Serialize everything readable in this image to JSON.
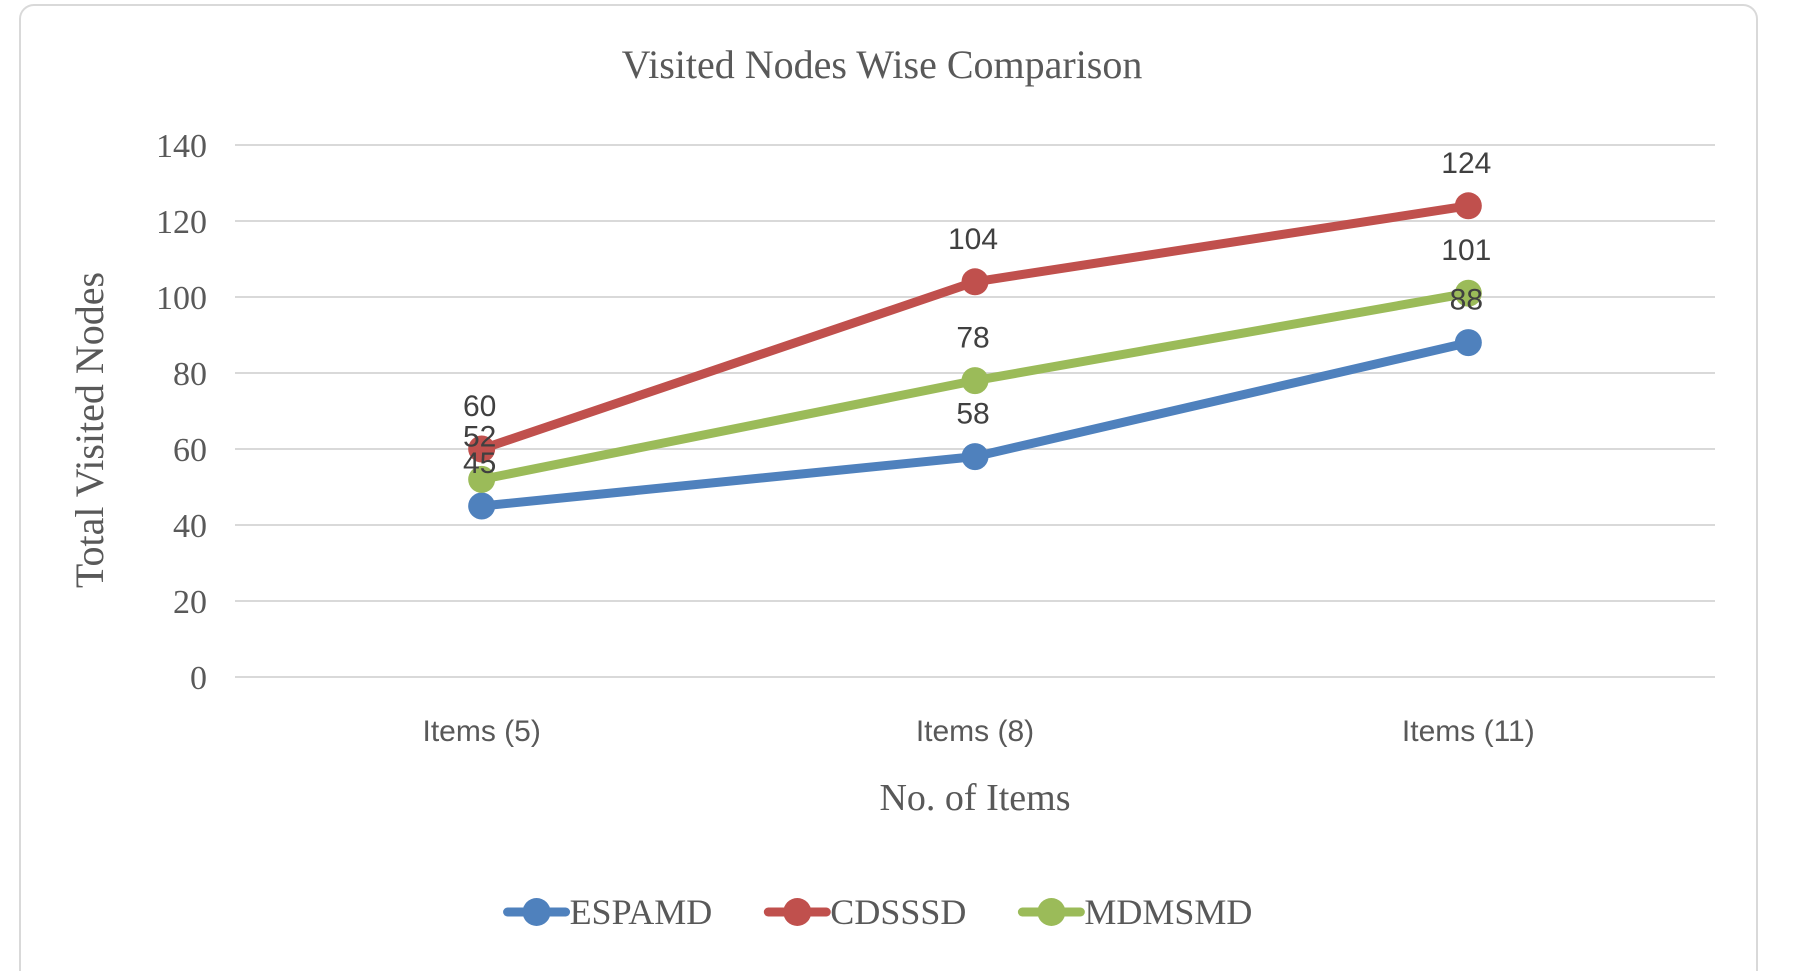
{
  "chart_data": {
    "type": "line",
    "title": "Visited Nodes Wise Comparison",
    "xlabel": "No. of Items",
    "ylabel": "Total Visited Nodes",
    "categories": [
      "Items (5)",
      "Items (8)",
      "Items (11)"
    ],
    "series": [
      {
        "name": "ESPAMD",
        "color": "#4F81BD",
        "values": [
          45,
          58,
          88
        ]
      },
      {
        "name": "CDSSSD",
        "color": "#C0504D",
        "values": [
          60,
          104,
          124
        ]
      },
      {
        "name": "MDMSMD",
        "color": "#9BBB59",
        "values": [
          52,
          78,
          101
        ]
      }
    ],
    "ylim": [
      0,
      140
    ],
    "yticks": [
      0,
      20,
      40,
      60,
      80,
      100,
      120,
      140
    ],
    "grid": true,
    "grid_orientation": "horizontal",
    "legend_position": "bottom",
    "data_labels": true,
    "data_label_position": "above"
  },
  "colors": {
    "background": "#FFFFFF",
    "frame_border": "#D9D9D9",
    "gridline": "#D9D9D9",
    "title_text": "#595959",
    "axis_text": "#595959",
    "data_label_text": "#404040",
    "legend_text": "#595959"
  }
}
